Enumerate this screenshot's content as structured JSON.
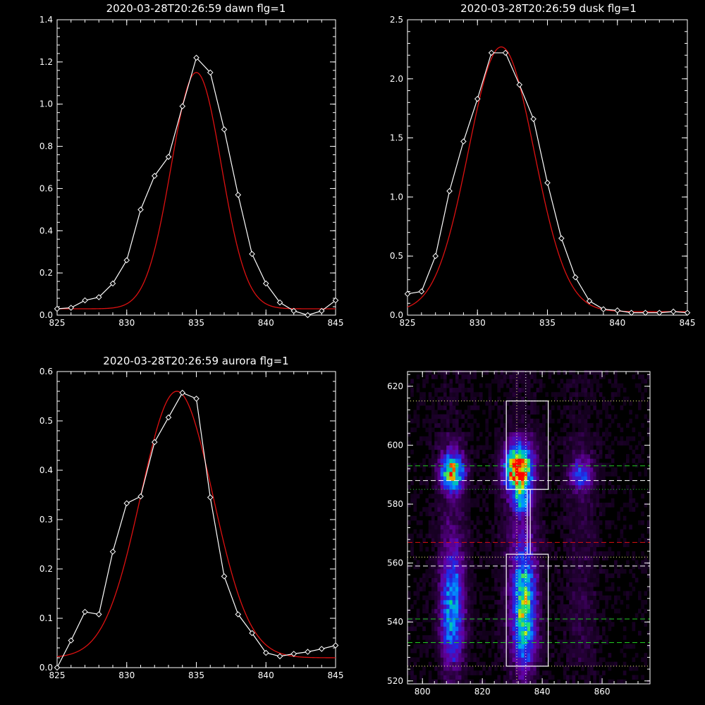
{
  "colors": {
    "background": "#000000",
    "data": "#ffffff",
    "fit": "#dd1111"
  },
  "chart_data": [
    {
      "type": "line",
      "title": "2020-03-28T20:26:59 dawn flg=1",
      "xlim": [
        825,
        845
      ],
      "ylim": [
        0,
        1.4
      ],
      "xticks": [
        "825",
        "830",
        "835",
        "840",
        "845"
      ],
      "yticks": [
        "0.0",
        "0.2",
        "0.4",
        "0.6",
        "0.8",
        "1.0",
        "1.2",
        "1.4"
      ],
      "series": [
        {
          "marker": "diamond",
          "x": [
            825,
            826,
            827,
            828,
            829,
            830,
            831,
            832,
            833,
            834,
            835,
            836,
            837,
            838,
            839,
            840,
            841,
            842,
            843,
            844,
            845
          ],
          "y": [
            0.03,
            0.035,
            0.07,
            0.085,
            0.15,
            0.26,
            0.5,
            0.66,
            0.75,
            0.99,
            1.22,
            1.15,
            0.88,
            0.57,
            0.29,
            0.15,
            0.06,
            0.02,
            0.0,
            0.02,
            0.07
          ]
        },
        {
          "fit": {
            "amp": 1.12,
            "center": 835.0,
            "sigma": 1.8,
            "base": 0.03
          }
        }
      ]
    },
    {
      "type": "line",
      "title": "2020-03-28T20:26:59 dusk flg=1",
      "xlim": [
        825,
        845
      ],
      "ylim": [
        0,
        2.5
      ],
      "xticks": [
        "825",
        "830",
        "835",
        "840",
        "845"
      ],
      "yticks": [
        "0.0",
        "0.5",
        "1.0",
        "1.5",
        "2.0",
        "2.5"
      ],
      "series": [
        {
          "marker": "diamond",
          "x": [
            825,
            826,
            827,
            828,
            829,
            830,
            831,
            832,
            833,
            834,
            835,
            836,
            837,
            838,
            839,
            840,
            841,
            842,
            843,
            844,
            845
          ],
          "y": [
            0.18,
            0.2,
            0.5,
            1.05,
            1.47,
            1.83,
            2.22,
            2.22,
            1.95,
            1.66,
            1.12,
            0.65,
            0.32,
            0.12,
            0.05,
            0.04,
            0.02,
            0.02,
            0.02,
            0.03,
            0.02
          ]
        },
        {
          "fit": {
            "amp": 2.24,
            "center": 831.7,
            "sigma": 2.35,
            "base": 0.03
          }
        }
      ]
    },
    {
      "type": "line",
      "title": "2020-03-28T20:26:59 aurora flg=1",
      "xlim": [
        825,
        845
      ],
      "ylim": [
        0,
        0.6
      ],
      "xticks": [
        "825",
        "830",
        "835",
        "840",
        "845"
      ],
      "yticks": [
        "0.0",
        "0.1",
        "0.2",
        "0.3",
        "0.4",
        "0.5",
        "0.6"
      ],
      "series": [
        {
          "marker": "diamond",
          "x": [
            825,
            826,
            827,
            828,
            829,
            830,
            831,
            832,
            833,
            834,
            835,
            836,
            837,
            838,
            839,
            840,
            841,
            842,
            843,
            844,
            845
          ],
          "y": [
            0.0,
            0.055,
            0.113,
            0.108,
            0.235,
            0.333,
            0.347,
            0.457,
            0.507,
            0.557,
            0.545,
            0.345,
            0.185,
            0.108,
            0.07,
            0.03,
            0.023,
            0.028,
            0.032,
            0.038,
            0.045
          ]
        },
        {
          "fit": {
            "amp": 0.54,
            "center": 833.6,
            "sigma": 2.6,
            "base": 0.02
          }
        }
      ]
    },
    {
      "type": "heatmap",
      "xlim": [
        795,
        876
      ],
      "ylim": [
        519,
        625
      ],
      "xticks": [
        "800",
        "820",
        "840",
        "860"
      ],
      "yticks": [
        "520",
        "540",
        "560",
        "580",
        "600",
        "620"
      ],
      "blobs": [
        {
          "x": 810,
          "y": 591,
          "sx": 2.5,
          "sy": 4.0,
          "amp": 0.75
        },
        {
          "x": 832,
          "y": 592,
          "sx": 3.0,
          "sy": 5.0,
          "amp": 1.0
        },
        {
          "x": 853,
          "y": 590,
          "sx": 2.5,
          "sy": 3.5,
          "amp": 0.35
        },
        {
          "x": 810,
          "y": 545,
          "sx": 2.5,
          "sy": 13.0,
          "amp": 0.45
        },
        {
          "x": 834,
          "y": 545,
          "sx": 2.5,
          "sy": 14.0,
          "amp": 0.6
        },
        {
          "x": 833,
          "y": 581,
          "sx": 2.0,
          "sy": 3.0,
          "amp": 0.35
        }
      ],
      "boxes": [
        {
          "x0": 828,
          "x1": 842,
          "y0": 585,
          "y1": 615
        },
        {
          "x0": 828,
          "x1": 842,
          "y0": 525,
          "y1": 563
        },
        {
          "x0": 835,
          "x1": 836,
          "y0": 563,
          "y1": 585
        }
      ],
      "hlines": [
        {
          "y": 615,
          "color": "#ffff88",
          "style": "dotted"
        },
        {
          "y": 593,
          "color": "#22cc22",
          "style": "dashed"
        },
        {
          "y": 588,
          "color": "#ffffff",
          "style": "dashed"
        },
        {
          "y": 585,
          "color": "#22cc22",
          "style": "dotted"
        },
        {
          "y": 567,
          "color": "#dd1111",
          "style": "dashed"
        },
        {
          "y": 562,
          "color": "#ffff88",
          "style": "dotted"
        },
        {
          "y": 559,
          "color": "#ffffff",
          "style": "dashed"
        },
        {
          "y": 541,
          "color": "#22cc22",
          "style": "dashed"
        },
        {
          "y": 533,
          "color": "#22cc22",
          "style": "dashed"
        },
        {
          "y": 525,
          "color": "#ffff88",
          "style": "dotted"
        }
      ],
      "vlines": [
        {
          "x": 831.5,
          "color": "#ffff88",
          "style": "dotted"
        },
        {
          "x": 834.5,
          "color": "#ffffff",
          "style": "dotted"
        }
      ]
    }
  ]
}
